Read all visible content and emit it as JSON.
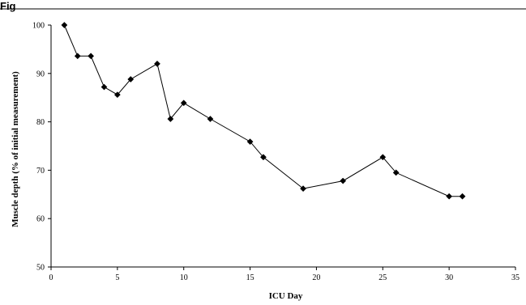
{
  "figure": {
    "label": "Fig"
  },
  "chart_data": {
    "type": "line",
    "title": "",
    "xlabel": "ICU Day",
    "ylabel": "Muscle depth (% of initial measurement)",
    "xlim": [
      0,
      35
    ],
    "ylim": [
      50,
      100
    ],
    "xticks": [
      0,
      5,
      10,
      15,
      20,
      25,
      30,
      35
    ],
    "yticks": [
      50,
      60,
      70,
      80,
      90,
      100
    ],
    "grid": false,
    "legend": "none",
    "marker": "diamond",
    "line_color": "#000000",
    "marker_color": "#000000",
    "x": [
      1,
      2,
      3,
      4,
      5,
      6,
      8,
      9,
      10,
      12,
      15,
      16,
      19,
      22,
      25,
      26,
      30,
      31
    ],
    "y": [
      100,
      93.6,
      93.6,
      87.2,
      85.6,
      88.8,
      92.0,
      80.6,
      83.9,
      80.6,
      75.9,
      72.7,
      66.2,
      67.8,
      72.7,
      69.5,
      64.6,
      64.6
    ]
  }
}
